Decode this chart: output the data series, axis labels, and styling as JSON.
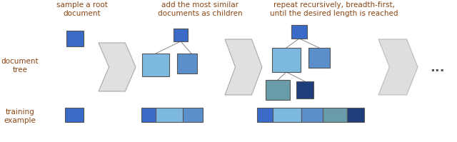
{
  "bg_color": "#ffffff",
  "text_color": "#8B4513",
  "title_fontsize": 7.5,
  "label_fontsize": 7.5,
  "colors": {
    "blue_dark": "#3A6BC9",
    "blue_medium": "#5B8FCC",
    "blue_light": "#7DB8E0",
    "teal": "#6A9BA8",
    "navy": "#1E3D7A"
  },
  "arrow_color": "#E0E0E0",
  "arrow_edge": "#AAAAAA",
  "line_color": "#888888",
  "step_labels": [
    "sample a root\ndocument",
    "add the most similar\ndocuments as children",
    "repeat recursively, breadth-first,\nuntil the desired length is reached"
  ],
  "row_labels": [
    "document\ntree",
    "training\nexample"
  ],
  "dots": "..."
}
